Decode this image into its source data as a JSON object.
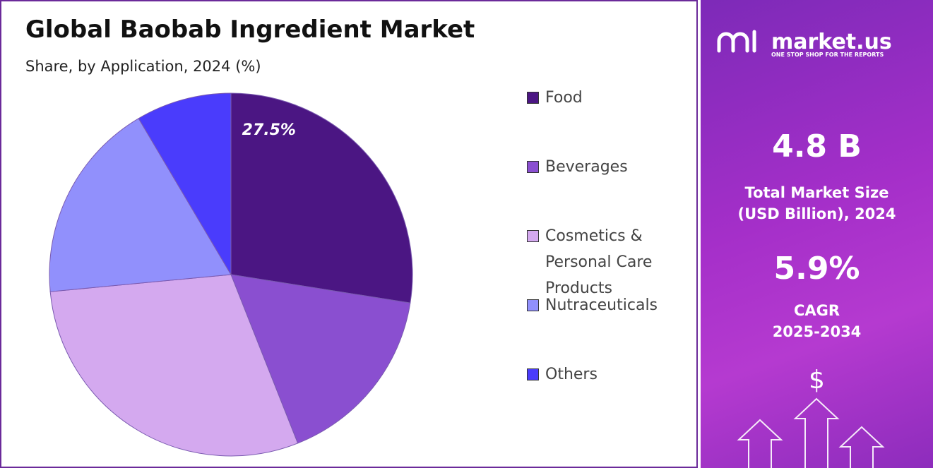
{
  "chart_data": {
    "type": "pie",
    "title": "Global Baobab Ingredient Market",
    "subtitle": "Share, by Application, 2024 (%)",
    "categories": [
      "Food",
      "Beverages",
      "Cosmetics & Personal Care Products",
      "Nutraceuticals",
      "Others"
    ],
    "values": [
      27.5,
      16.5,
      29.5,
      18,
      8.5
    ],
    "value_labels": [
      "27.5%",
      null,
      null,
      null,
      null
    ],
    "colors": [
      "#4b1683",
      "#8a4fd0",
      "#d4a9ef",
      "#9190fc",
      "#4a3cfc"
    ],
    "legend": "right"
  },
  "side_panel": {
    "brand": "market.us",
    "tagline": "ONE STOP SHOP FOR THE REPORTS",
    "market_size": "4.8 B",
    "market_size_label": [
      "Total Market Size",
      "(USD Billion), 2024"
    ],
    "cagr": "5.9%",
    "cagr_label": [
      "CAGR",
      "2025-2034"
    ],
    "icon": "$"
  }
}
